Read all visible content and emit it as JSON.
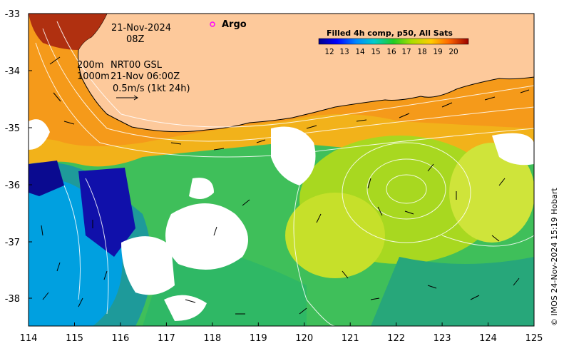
{
  "map": {
    "date_line1": "21-Nov-2024",
    "date_line2": "08Z",
    "depth_a": "200m",
    "model_name": "NRT00 GSL",
    "depth_b": "1000m",
    "model_time": "21-Nov 06:00Z",
    "scale_arrow": "0.5m/s (1kt 24h)",
    "argo_label": "Argo",
    "colorbar_title": "Filled 4h comp, p50, All Sats",
    "colorbar_ticks": [
      "12",
      "13",
      "14",
      "15",
      "16",
      "17",
      "18",
      "19",
      "20"
    ],
    "x_ticks": [
      "114",
      "115",
      "116",
      "117",
      "118",
      "119",
      "120",
      "121",
      "122",
      "123",
      "124",
      "125"
    ],
    "y_ticks": [
      "-33",
      "-34",
      "-35",
      "-36",
      "-37",
      "-38"
    ],
    "credit": "© IMOS 24-Nov-2024 15:19 Hobart",
    "colors": {
      "land": "#fdc99b",
      "argo_marker": "#ff00ff",
      "coast": "#000000"
    }
  }
}
